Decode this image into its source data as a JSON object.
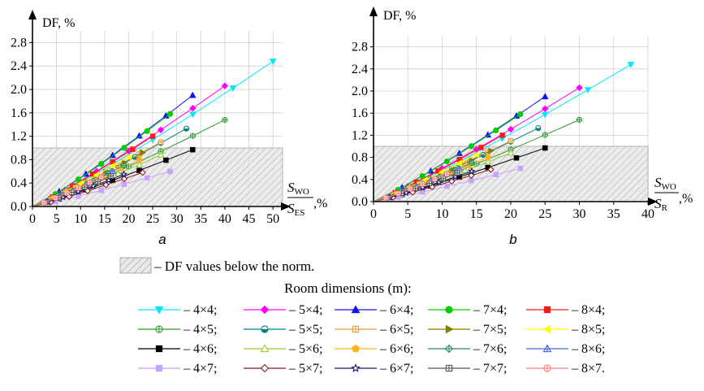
{
  "chart_data": [
    {
      "panel_label": "a",
      "type": "line",
      "ylabel": "DF, %",
      "xlabel_numerator": "S",
      "xlabel_numerator_sub": "WO",
      "xlabel_denominator": "S",
      "xlabel_denominator_sub": "ES",
      "xlabel_unit": ",%",
      "xlim": [
        0,
        52
      ],
      "ylim": [
        0,
        3.0
      ],
      "xticks": [
        "0",
        "5",
        "10",
        "15",
        "20",
        "25",
        "30",
        "35",
        "40",
        "45",
        "50"
      ],
      "xtick_values": [
        0,
        5,
        10,
        15,
        20,
        25,
        30,
        35,
        40,
        45,
        50
      ],
      "yticks": [
        "0.0",
        "0.4",
        "0.8",
        "1.2",
        "1.6",
        "2.0",
        "2.4",
        "2.8"
      ],
      "ytick_values": [
        0,
        0.4,
        0.8,
        1.2,
        1.6,
        2.0,
        2.4,
        2.8
      ],
      "grid": true,
      "norm_band": [
        0,
        1.0
      ],
      "series_max_x": [
        50,
        40,
        33.3,
        28.6,
        25,
        40,
        32,
        26.7,
        22.9,
        20,
        33.3,
        26.7,
        22.2,
        19,
        16.7,
        28.6,
        22.9,
        19,
        16.3,
        14.3
      ],
      "series_max_y": [
        2.48,
        2.06,
        1.9,
        1.58,
        1.2,
        1.48,
        1.33,
        1.1,
        0.92,
        0.85,
        0.97,
        0.88,
        0.8,
        0.7,
        0.6,
        0.6,
        0.58,
        0.55,
        0.52,
        0.5
      ]
    },
    {
      "panel_label": "b",
      "type": "line",
      "ylabel": "DF, %",
      "xlabel_numerator": "S",
      "xlabel_numerator_sub": "WO",
      "xlabel_denominator": "S",
      "xlabel_denominator_sub": "R",
      "xlabel_unit": ",%",
      "xlim": [
        0,
        40
      ],
      "ylim": [
        0,
        3.0
      ],
      "xticks": [
        "0",
        "5",
        "10",
        "15",
        "20",
        "25",
        "30",
        "35",
        "40"
      ],
      "xtick_values": [
        0,
        5,
        10,
        15,
        20,
        25,
        30,
        35,
        40
      ],
      "yticks": [
        "0.0",
        "0.4",
        "0.8",
        "1.2",
        "1.6",
        "2.0",
        "2.4",
        "2.8"
      ],
      "ytick_values": [
        0,
        0.4,
        0.8,
        1.2,
        1.6,
        2.0,
        2.4,
        2.8
      ],
      "grid": true,
      "norm_band": [
        0,
        1.0
      ],
      "series_max_x": [
        37.5,
        30,
        25,
        21.4,
        18.8,
        30,
        24,
        20,
        17.1,
        15,
        25,
        20,
        16.7,
        14.3,
        12.5,
        21.4,
        17.1,
        14.3,
        12.2,
        10.7
      ],
      "series_max_y": [
        2.48,
        2.06,
        1.9,
        1.58,
        1.2,
        1.48,
        1.33,
        1.1,
        0.92,
        0.85,
        0.97,
        0.88,
        0.8,
        0.7,
        0.6,
        0.6,
        0.58,
        0.55,
        0.52,
        0.5
      ]
    }
  ],
  "legend": {
    "hatch_text": "– DF values below the norm.",
    "title": "Room dimensions (m):",
    "items": [
      {
        "label": "– 4×4;",
        "color": "#00e6ff",
        "marker": "triangle-down",
        "fill": true
      },
      {
        "label": "– 5×4;",
        "color": "#ff00ff",
        "marker": "diamond",
        "fill": true
      },
      {
        "label": "– 6×4;",
        "color": "#1010ff",
        "marker": "triangle-up",
        "fill": true
      },
      {
        "label": "– 7×4;",
        "color": "#00cc00",
        "marker": "circle",
        "fill": true
      },
      {
        "label": "– 8×4;",
        "color": "#ff1a1a",
        "marker": "square",
        "fill": true
      },
      {
        "label": "– 4×5;",
        "color": "#2e9a2e",
        "marker": "circle-plus",
        "fill": false
      },
      {
        "label": "– 5×5;",
        "color": "#008080",
        "marker": "circle-half",
        "fill": false
      },
      {
        "label": "– 6×5;",
        "color": "#e69a3c",
        "marker": "square-plus",
        "fill": false
      },
      {
        "label": "– 7×5;",
        "color": "#808000",
        "marker": "triangle-right",
        "fill": true
      },
      {
        "label": "– 8×5;",
        "color": "#ffff00",
        "marker": "triangle-left",
        "fill": true
      },
      {
        "label": "– 4×6;",
        "color": "#000000",
        "marker": "square",
        "fill": true
      },
      {
        "label": "– 5×6;",
        "color": "#99cc33",
        "marker": "triangle-up",
        "fill": false
      },
      {
        "label": "– 6×6;",
        "color": "#ffb21a",
        "marker": "pentagon",
        "fill": true
      },
      {
        "label": "– 7×6;",
        "color": "#2e8b57",
        "marker": "diamond-plus",
        "fill": false
      },
      {
        "label": "– 8×6;",
        "color": "#4169e1",
        "marker": "triangle-plus",
        "fill": false
      },
      {
        "label": "– 4×7;",
        "color": "#c8a2ff",
        "marker": "square",
        "fill": true
      },
      {
        "label": "– 5×7;",
        "color": "#8b1a1a",
        "marker": "diamond",
        "fill": false
      },
      {
        "label": "– 6×7;",
        "color": "#191970",
        "marker": "star",
        "fill": false
      },
      {
        "label": "– 7×7;",
        "color": "#555555",
        "marker": "square-plus",
        "fill": false
      },
      {
        "label": "– 8×7.",
        "color": "#ff7f7f",
        "marker": "circle-plus",
        "fill": false
      }
    ]
  }
}
